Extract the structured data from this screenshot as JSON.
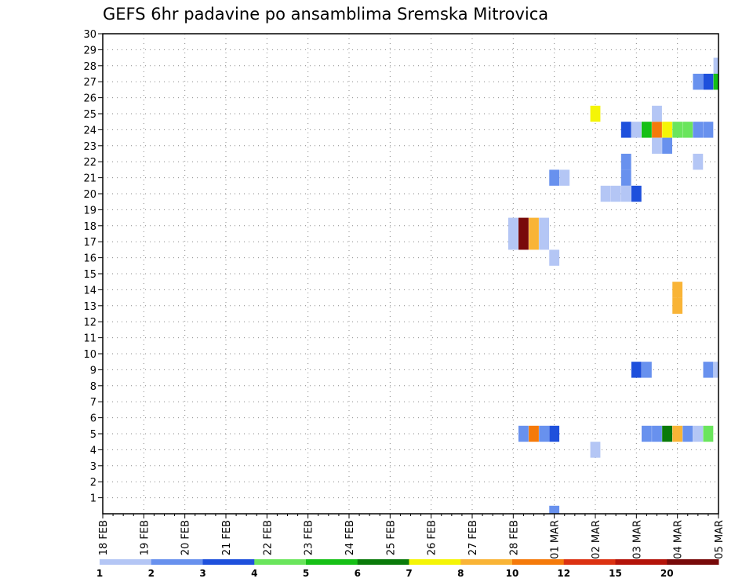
{
  "chart_data": {
    "type": "heatmap",
    "title": "GEFS 6hr padavine po ansamblima Sremska Mitrovica",
    "xlabel": "",
    "ylabel": "",
    "x_ticks": [
      "18 FEB",
      "19 FEB",
      "20 FEB",
      "21 FEB",
      "22 FEB",
      "23 FEB",
      "24 FEB",
      "25 FEB",
      "26 FEB",
      "27 FEB",
      "28 FEB",
      "01 MAR",
      "02 MAR",
      "03 MAR",
      "04 MAR",
      "05 MAR"
    ],
    "xlim": [
      0,
      60
    ],
    "ylim": [
      0,
      30
    ],
    "y_ticks": [
      1,
      2,
      3,
      4,
      5,
      6,
      7,
      8,
      9,
      10,
      11,
      12,
      13,
      14,
      15,
      16,
      17,
      18,
      19,
      20,
      21,
      22,
      23,
      24,
      25,
      26,
      27,
      28,
      29,
      30
    ],
    "grid": true,
    "legend": "colorbar-bottom",
    "colorbar_labels": [
      "1",
      "2",
      "3",
      "4",
      "5",
      "6",
      "7",
      "8",
      "10",
      "12",
      "15",
      "20"
    ],
    "colorbar_colors": [
      "#b4c6f5",
      "#6891ee",
      "#1e50dc",
      "#6ae55c",
      "#16c016",
      "#0a7a0a",
      "#f5f506",
      "#f9b436",
      "#f57a0a",
      "#dc3212",
      "#b4140a",
      "#780a0a"
    ],
    "cells": [
      {
        "t": 40,
        "m": 17,
        "v": 1.5
      },
      {
        "t": 40,
        "m": 18,
        "v": 1.5
      },
      {
        "t": 41,
        "m": 17,
        "v": 25
      },
      {
        "t": 41,
        "m": 18,
        "v": 25
      },
      {
        "t": 42,
        "m": 17,
        "v": 9
      },
      {
        "t": 42,
        "m": 18,
        "v": 9
      },
      {
        "t": 43,
        "m": 17,
        "v": 1.5
      },
      {
        "t": 43,
        "m": 18,
        "v": 1.5
      },
      {
        "t": 44,
        "m": 16,
        "v": 1.5
      },
      {
        "t": 41,
        "m": 5,
        "v": 2.5
      },
      {
        "t": 42,
        "m": 5,
        "v": 11
      },
      {
        "t": 43,
        "m": 5,
        "v": 2.5
      },
      {
        "t": 44,
        "m": 5,
        "v": 3.5
      },
      {
        "t": 44,
        "m": 0,
        "v": 2.5
      },
      {
        "t": 44,
        "m": 21,
        "v": 2.5
      },
      {
        "t": 45,
        "m": 21,
        "v": 1.5
      },
      {
        "t": 48,
        "m": 25,
        "v": 7.5
      },
      {
        "t": 48,
        "m": 4,
        "v": 1.5
      },
      {
        "t": 49,
        "m": 20,
        "v": 1.5
      },
      {
        "t": 50,
        "m": 20,
        "v": 1.5
      },
      {
        "t": 51,
        "m": 20,
        "v": 1.5
      },
      {
        "t": 52,
        "m": 20,
        "v": 3.5
      },
      {
        "t": 51,
        "m": 21,
        "v": 2.5
      },
      {
        "t": 51,
        "m": 22,
        "v": 2.5
      },
      {
        "t": 51,
        "m": 24,
        "v": 3.5
      },
      {
        "t": 52,
        "m": 24,
        "v": 1.5
      },
      {
        "t": 53,
        "m": 24,
        "v": 5.5
      },
      {
        "t": 54,
        "m": 24,
        "v": 11
      },
      {
        "t": 55,
        "m": 24,
        "v": 7.5
      },
      {
        "t": 56,
        "m": 24,
        "v": 4.5
      },
      {
        "t": 57,
        "m": 24,
        "v": 4.5
      },
      {
        "t": 58,
        "m": 24,
        "v": 2.5
      },
      {
        "t": 59,
        "m": 24,
        "v": 2.5
      },
      {
        "t": 54,
        "m": 25,
        "v": 1.5
      },
      {
        "t": 54,
        "m": 23,
        "v": 1.5
      },
      {
        "t": 55,
        "m": 23,
        "v": 2.5
      },
      {
        "t": 58,
        "m": 22,
        "v": 1.5
      },
      {
        "t": 52,
        "m": 9,
        "v": 3.5
      },
      {
        "t": 53,
        "m": 9,
        "v": 2.5
      },
      {
        "t": 59,
        "m": 9,
        "v": 2.5
      },
      {
        "t": 60,
        "m": 9,
        "v": 1.5
      },
      {
        "t": 56,
        "m": 13,
        "v": 9
      },
      {
        "t": 56,
        "m": 14,
        "v": 9
      },
      {
        "t": 53,
        "m": 5,
        "v": 2.5
      },
      {
        "t": 54,
        "m": 5,
        "v": 2.5
      },
      {
        "t": 55,
        "m": 5,
        "v": 6.5
      },
      {
        "t": 56,
        "m": 5,
        "v": 9
      },
      {
        "t": 57,
        "m": 5,
        "v": 2.5
      },
      {
        "t": 58,
        "m": 5,
        "v": 1.5
      },
      {
        "t": 59,
        "m": 5,
        "v": 4.5
      },
      {
        "t": 58,
        "m": 27,
        "v": 2.5
      },
      {
        "t": 59,
        "m": 27,
        "v": 3.5
      },
      {
        "t": 60,
        "m": 27,
        "v": 5.5
      },
      {
        "t": 60,
        "m": 28,
        "v": 1.5
      }
    ]
  }
}
